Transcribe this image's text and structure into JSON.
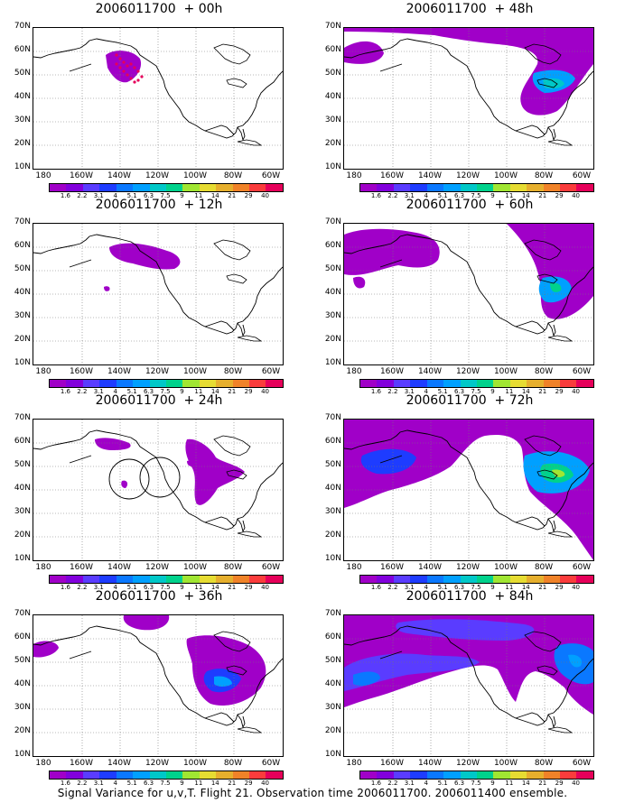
{
  "panels": [
    {
      "title": "2006011700  + 00h"
    },
    {
      "title": "2006011700  + 48h"
    },
    {
      "title": "2006011700  + 12h"
    },
    {
      "title": "2006011700  + 60h"
    },
    {
      "title": "2006011700  + 24h"
    },
    {
      "title": "2006011700  + 72h"
    },
    {
      "title": "2006011700  + 36h"
    },
    {
      "title": "2006011700  + 84h"
    }
  ],
  "lat_labels": [
    "70N",
    "60N",
    "50N",
    "40N",
    "30N",
    "20N",
    "10N"
  ],
  "lon_labels": [
    "180",
    "160W",
    "140W",
    "120W",
    "100W",
    "80W",
    "60W"
  ],
  "colorbar": {
    "labels": [
      "1.6",
      "2.2",
      "3.1",
      "4",
      "5.1",
      "6.3",
      "7.5",
      "9",
      "11",
      "14",
      "21",
      "29",
      "40"
    ],
    "colors": [
      "#a000c8",
      "#8200dc",
      "#5a3cff",
      "#1e3cff",
      "#0a78ff",
      "#00a0ff",
      "#00c8c8",
      "#00d28c",
      "#a0e632",
      "#e6dc32",
      "#e6af2d",
      "#f08228",
      "#fa3c3c",
      "#e6005a"
    ]
  },
  "caption": "Signal Variance for u,v,T. Flight 21. Observation time 2006011700. 2006011400 ensemble."
}
